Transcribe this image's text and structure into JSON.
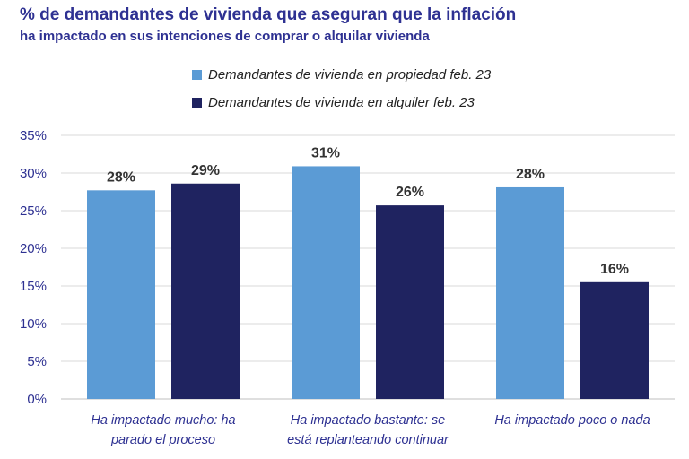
{
  "title": "% de demandantes de vivienda que aseguran que la inflación",
  "subtitle": "ha impactado en sus intenciones de comprar o alquilar vivienda",
  "colors": {
    "series_1": "#5b9bd5",
    "series_2": "#1f2360",
    "text_blue": "#2e3192",
    "gridline": "#d9d9d9"
  },
  "chart_data": {
    "type": "bar",
    "title": "% de demandantes de vivienda que aseguran que la inflación ha impactado en sus intenciones de comprar o alquilar vivienda",
    "categories": [
      [
        "Ha impactado mucho: ha",
        "parado el proceso"
      ],
      [
        "Ha impactado bastante: se",
        "está replanteando continuar"
      ],
      [
        "Ha impactado poco o nada"
      ]
    ],
    "series": [
      {
        "name": "Demandantes de vivienda en propiedad feb. 23",
        "values": [
          27.7,
          30.9,
          28.1
        ],
        "labels": [
          "28%",
          "31%",
          "28%"
        ]
      },
      {
        "name": "Demandantes de vivienda en alquiler feb. 23",
        "values": [
          28.6,
          25.7,
          15.5
        ],
        "labels": [
          "29%",
          "26%",
          "16%"
        ]
      }
    ],
    "ylim": [
      0,
      35
    ],
    "yticks": [
      0,
      5,
      10,
      15,
      20,
      25,
      30,
      35
    ],
    "ytick_labels": [
      "0%",
      "5%",
      "10%",
      "15%",
      "20%",
      "25%",
      "30%",
      "35%"
    ],
    "xlabel": "",
    "ylabel": "",
    "legend_position": "top-center",
    "grid": true
  }
}
